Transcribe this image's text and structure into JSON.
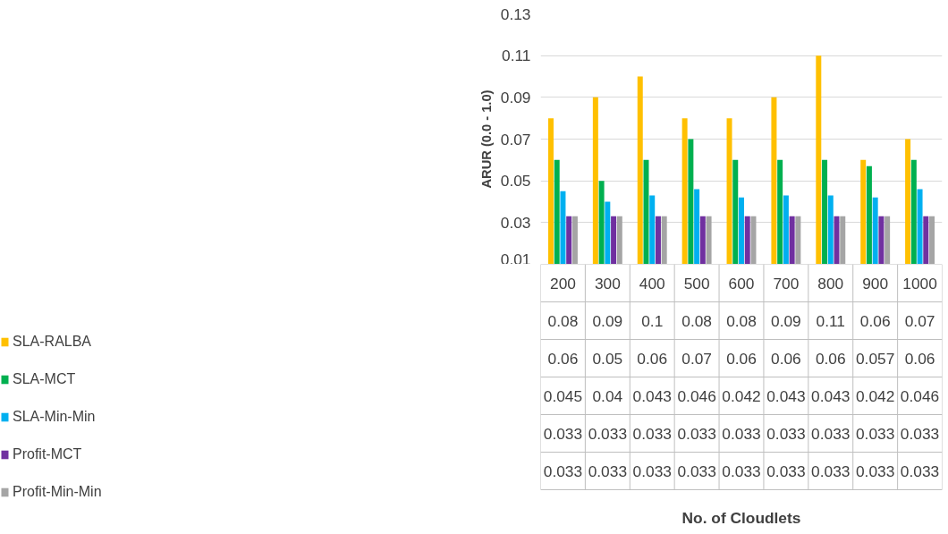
{
  "chart_data": {
    "type": "bar",
    "ylabel": "ARUR (0.0 - 1.0)",
    "annotations": [
      "No. of Cloudlets"
    ],
    "categories": [
      "200",
      "300",
      "400",
      "500",
      "600",
      "700",
      "800",
      "900",
      "1000"
    ],
    "series": [
      {
        "name": "SLA-RALBA",
        "color": "#ffc000",
        "values": [
          0.08,
          0.09,
          0.1,
          0.08,
          0.08,
          0.09,
          0.11,
          0.06,
          0.07
        ]
      },
      {
        "name": "SLA-MCT",
        "color": "#00b050",
        "values": [
          0.06,
          0.05,
          0.06,
          0.07,
          0.06,
          0.06,
          0.06,
          0.057,
          0.06
        ]
      },
      {
        "name": "SLA-Min-Min",
        "color": "#00b0f0",
        "values": [
          0.045,
          0.04,
          0.043,
          0.046,
          0.042,
          0.043,
          0.043,
          0.042,
          0.046
        ]
      },
      {
        "name": "Profit-MCT",
        "color": "#7030a0",
        "values": [
          0.033,
          0.033,
          0.033,
          0.033,
          0.033,
          0.033,
          0.033,
          0.033,
          0.033
        ]
      },
      {
        "name": "Profit-Min-Min",
        "color": "#a5a5a5",
        "values": [
          0.033,
          0.033,
          0.033,
          0.033,
          0.033,
          0.033,
          0.033,
          0.033,
          0.033
        ]
      }
    ],
    "ylim": [
      0.01,
      0.13
    ],
    "yticks": [
      0.01,
      0.03,
      0.05,
      0.07,
      0.09,
      0.11,
      0.13
    ],
    "grid": "y",
    "legend": "bottom",
    "data_labels": true
  }
}
